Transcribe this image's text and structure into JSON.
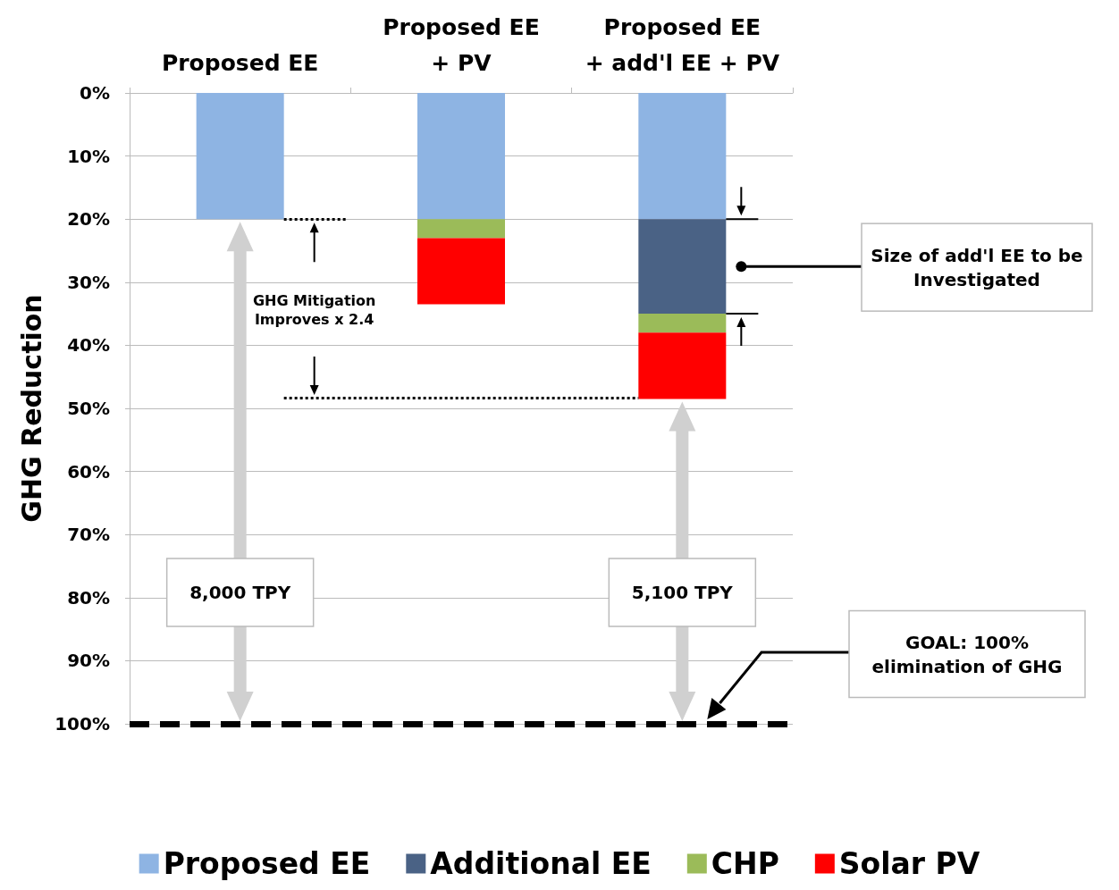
{
  "chart_data": {
    "type": "bar",
    "stacked": true,
    "categories": [
      "Proposed EE",
      "Proposed EE\n+ PV",
      "Proposed EE\n+ add'l EE + PV"
    ],
    "series": [
      {
        "name": "Proposed EE",
        "color": "#8eb4e3",
        "values": [
          20,
          20,
          20
        ]
      },
      {
        "name": "Additional EE",
        "color": "#4a6285",
        "values": [
          null,
          null,
          15
        ]
      },
      {
        "name": "CHP",
        "color": "#9bbb59",
        "values": [
          null,
          3,
          3
        ]
      },
      {
        "name": "Solar PV",
        "color": "#ff0000",
        "values": [
          null,
          10.5,
          10.5
        ]
      }
    ],
    "ylabel": "GHG Reduction",
    "ylim": [
      100,
      0
    ],
    "yticks": [
      {
        "value": 0,
        "label": "0%"
      },
      {
        "value": 10,
        "label": "10%"
      },
      {
        "value": 20,
        "label": "20%"
      },
      {
        "value": 30,
        "label": "30%"
      },
      {
        "value": 40,
        "label": "40%"
      },
      {
        "value": 50,
        "label": "50%"
      },
      {
        "value": 60,
        "label": "60%"
      },
      {
        "value": 70,
        "label": "70%"
      },
      {
        "value": 80,
        "label": "80%"
      },
      {
        "value": 90,
        "label": "90%"
      },
      {
        "value": 100,
        "label": "100%"
      }
    ],
    "grid": "y",
    "legend": "bottom",
    "ref_lines": [
      {
        "axis": "y",
        "value": 100,
        "color": "#000000",
        "line_style": "dashed"
      },
      {
        "axis": "y",
        "value": 20,
        "color": "#000000",
        "line_style": "dotted"
      },
      {
        "axis": "y",
        "value": 48.3,
        "color": "#000000",
        "line_style": "dotted"
      }
    ],
    "annotations": [
      "GHG Mitigation Improves x 2.4",
      "8,000 TPY",
      "5,100 TPY",
      "Size of add'l EE to be Investigated",
      "GOAL: 100% elimination of GHG"
    ]
  }
}
